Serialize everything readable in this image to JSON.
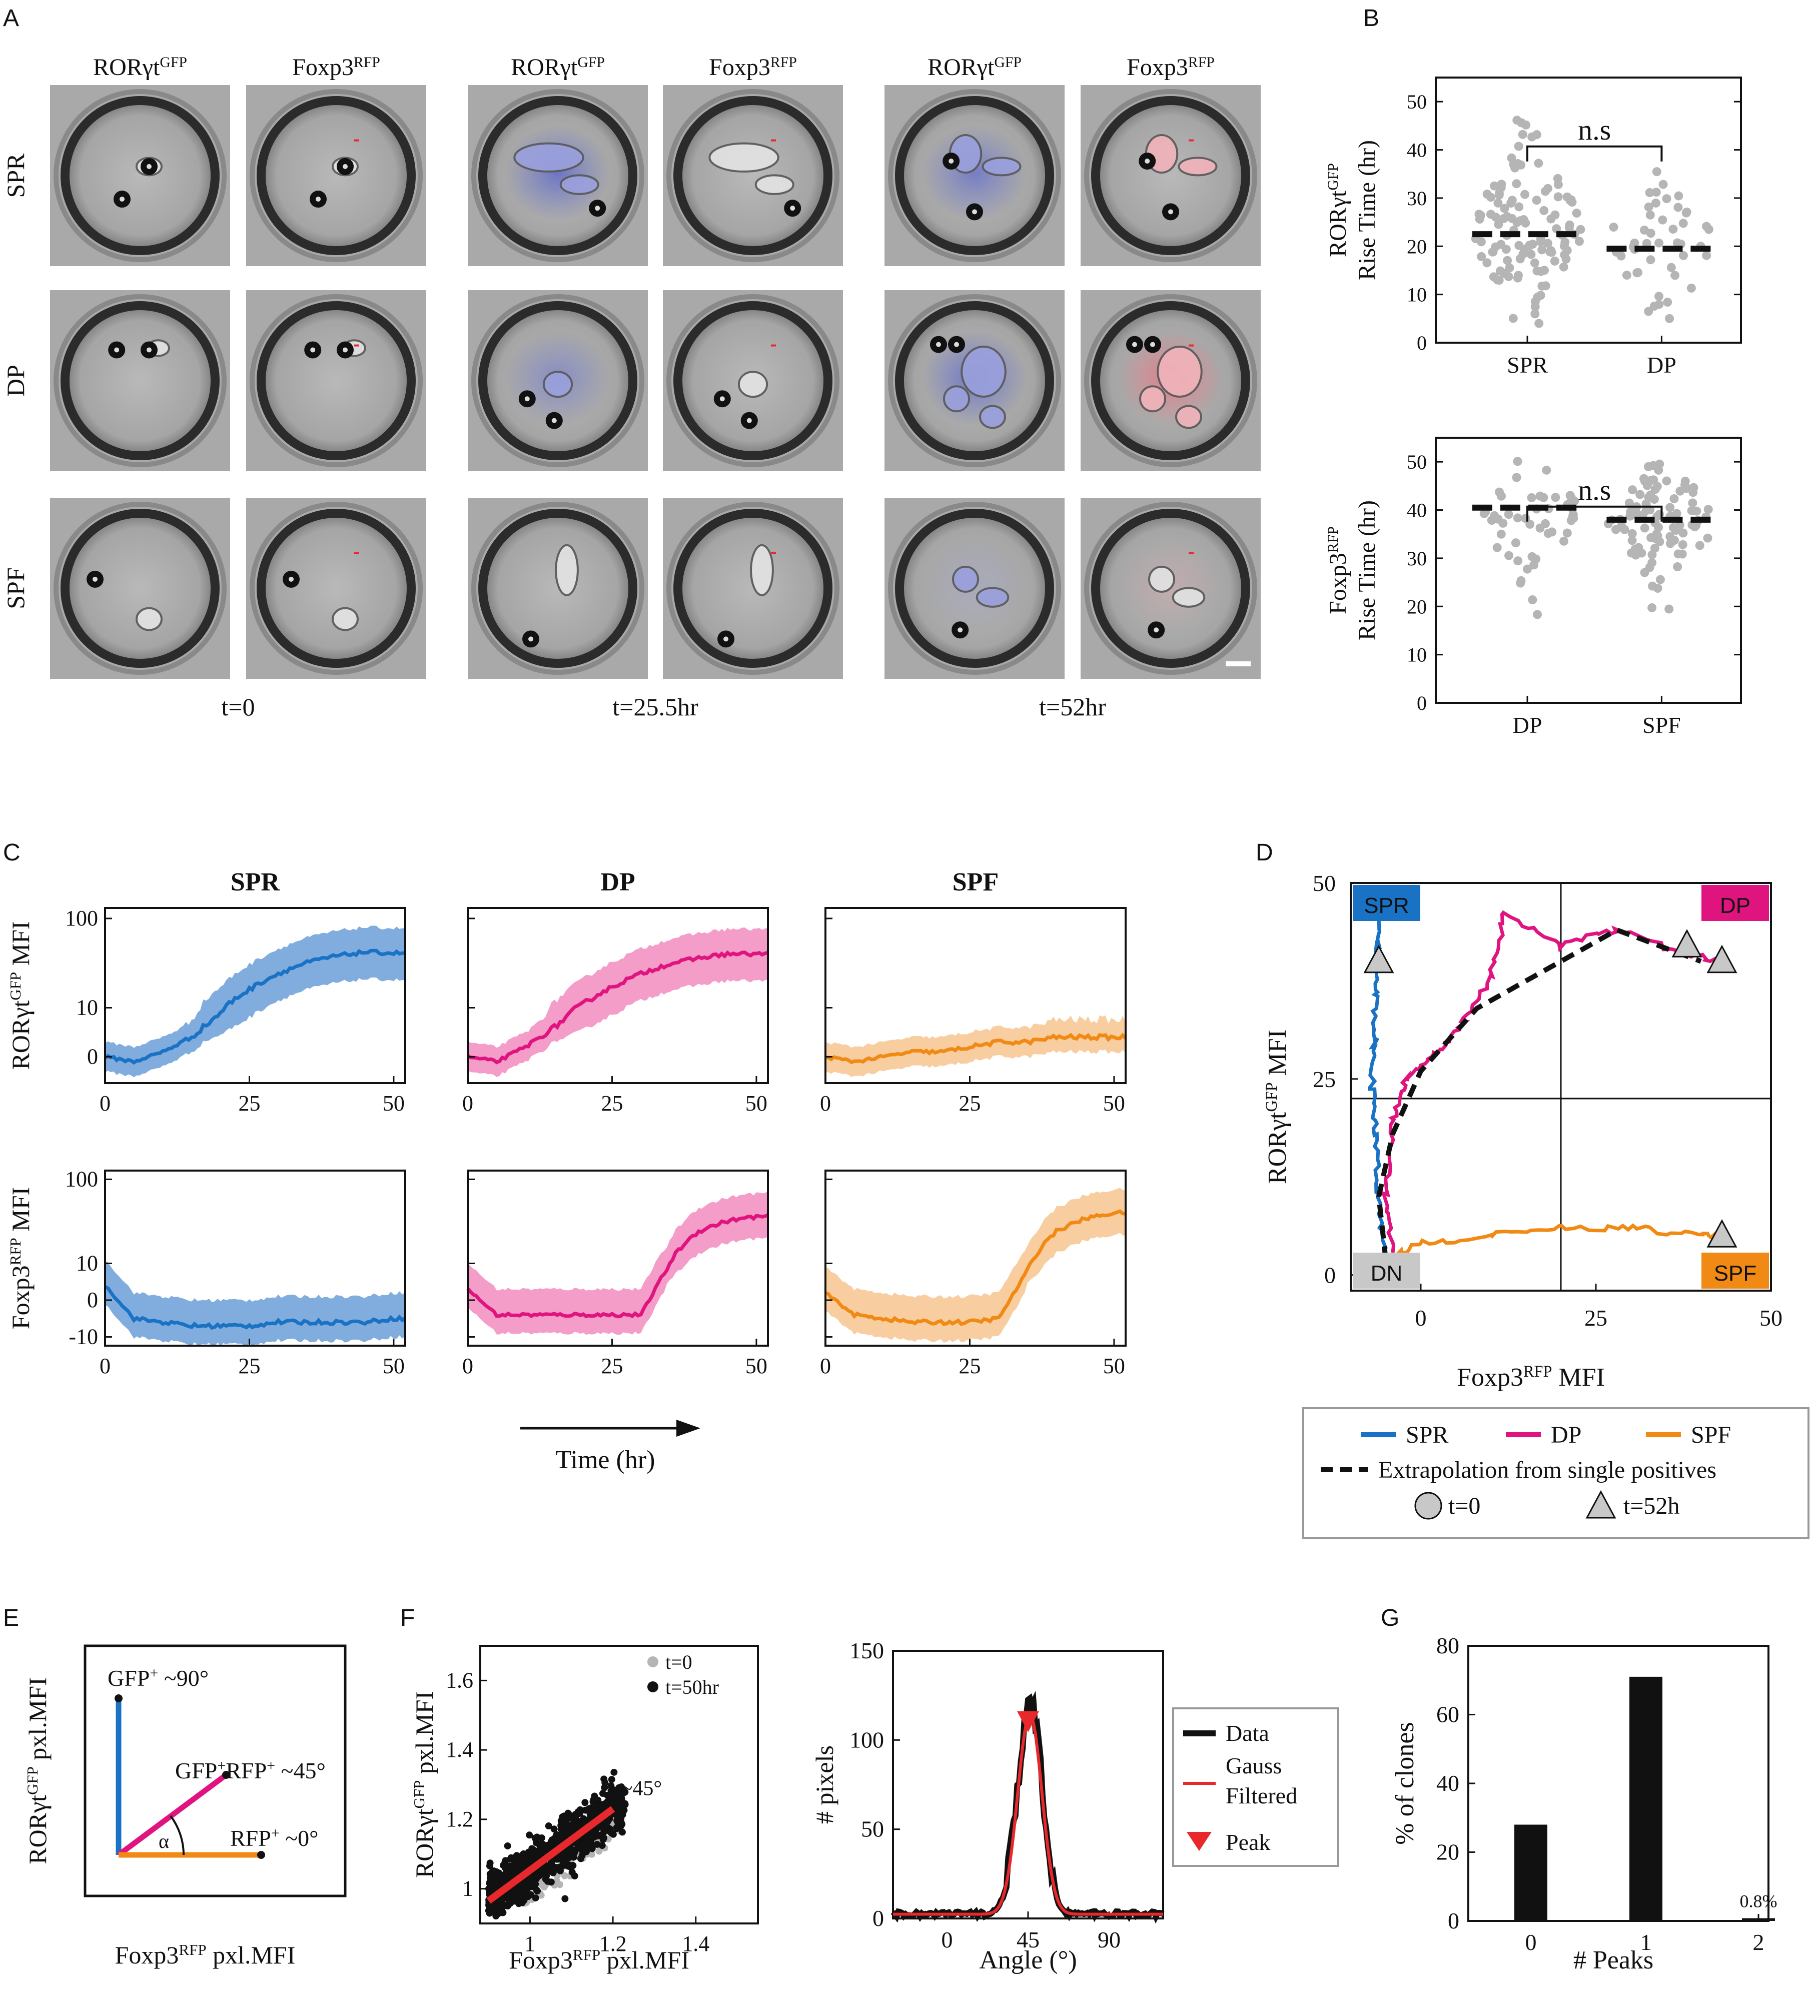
{
  "panels": {
    "A": "A",
    "B": "B",
    "C": "C",
    "D": "D",
    "E": "E",
    "F": "F",
    "G": "G"
  },
  "colors": {
    "spr": "#1a72c4",
    "dp": "#e0147f",
    "spf": "#f08a14",
    "sprBand": "#6b9ed8",
    "dpBand": "#f28cc0",
    "spfBand": "#f7c590",
    "gray": "#b5b5b5",
    "red": "#e8282b"
  },
  "panelA": {
    "header": {
      "ror": "RORγt",
      "gfp": "GFP",
      "foxp3": "Foxp3",
      "rfp": "RFP"
    },
    "rows": [
      "SPR",
      "DP",
      "SPF"
    ],
    "times": [
      "t=0",
      "t=25.5hr",
      "t=52hr"
    ]
  },
  "panelB": {
    "top": {
      "ylabel1": "RORγt",
      "ylabel_sup": "GFP",
      "ylabel2": "Rise Time (hr)",
      "yticks": [
        "0",
        "10",
        "20",
        "30",
        "40",
        "50"
      ],
      "xlabels": [
        "SPR",
        "DP"
      ],
      "sig": "n.s",
      "medians": [
        22.5,
        19.5
      ]
    },
    "bottom": {
      "ylabel1": "Foxp3",
      "ylabel_sup": "RFP",
      "ylabel2": "Rise Time (hr)",
      "yticks": [
        "0",
        "10",
        "20",
        "30",
        "40",
        "50"
      ],
      "xlabels": [
        "DP",
        "SPF"
      ],
      "sig": "n.s",
      "medians": [
        40.5,
        38
      ]
    }
  },
  "panelC": {
    "titles": [
      "SPR",
      "DP",
      "SPF"
    ],
    "ylabelTop": {
      "main": "RORγt",
      "sup": "GFP",
      "suffix": " MFI"
    },
    "ylabelBottom": {
      "main": "Foxp3",
      "sup": "RFP",
      "suffix": " MFI"
    },
    "yticksTop": [
      "0",
      "10",
      "100"
    ],
    "yticksBottom": [
      "-10",
      "0",
      "10",
      "100"
    ],
    "xticks": [
      "0",
      "25",
      "50"
    ],
    "xlabel": "Time (hr)"
  },
  "panelD": {
    "xlabel": {
      "main": "Foxp3",
      "sup": "RFP",
      "suffix": " MFI"
    },
    "ylabel": {
      "main": "RORγt",
      "sup": "GFP",
      "suffix": " MFI"
    },
    "xticks": [
      "0",
      "25",
      "50"
    ],
    "yticks": [
      "0",
      "25",
      "50"
    ],
    "quadrants": {
      "tl": "SPR",
      "tr": "DP",
      "bl": "DN",
      "br": "SPF"
    },
    "legend": {
      "spr": "SPR",
      "dp": "DP",
      "spf": "SPF",
      "extrap": "Extrapolation from single positives",
      "t0": "t=0",
      "t52": "t=52h"
    }
  },
  "panelE": {
    "gfp": "GFP",
    "gfpRest": " ~90°",
    "dp1": "GFP",
    "dp2": "RFP",
    "dpRest": " ~45°",
    "rfp": "RFP",
    "rfpRest": " ~0°",
    "alpha": "α",
    "plus": "+",
    "ylabel": {
      "main": "RORγt",
      "sup": "GFP",
      "suffix": " pxl.MFI"
    },
    "xlabel": {
      "main": "Foxp3",
      "sup": "RFP",
      "suffix": " pxl.MFI"
    }
  },
  "panelF": {
    "scatter": {
      "legend": [
        "t=0",
        "t=50hr"
      ],
      "angle": "~45°",
      "xticks": [
        "1",
        "1.2",
        "1.4"
      ],
      "yticks": [
        "1",
        "1.2",
        "1.4",
        "1.6"
      ],
      "xlabel": {
        "main": "Foxp3",
        "sup": "RFP",
        "suffix": " pxl.MFI"
      },
      "ylabel": {
        "main": "RORγt",
        "sup": "GFP",
        "suffix": " pxl.MFI"
      }
    },
    "hist": {
      "ylabel": "# pixels",
      "xlabel": "Angle (°)",
      "xticks": [
        "0",
        "45",
        "90"
      ],
      "yticks": [
        "0",
        "50",
        "100",
        "150"
      ],
      "legend": {
        "data": "Data",
        "gauss1": "Gauss",
        "gauss2": "Filtered",
        "peak": "Peak"
      },
      "peak_angle": 45,
      "peak_value": 110
    }
  },
  "panelG": {
    "ylabel": "% of clones",
    "xlabel": "# Peaks",
    "xticks": [
      "0",
      "1",
      "2"
    ],
    "yticks": [
      "0",
      "20",
      "40",
      "60",
      "80"
    ],
    "chart_data": {
      "type": "bar",
      "categories": [
        "0",
        "1",
        "2"
      ],
      "values": [
        28,
        71,
        0.8
      ],
      "ylim": [
        0,
        80
      ],
      "annotation": "0.8%",
      "xlabel": "# Peaks",
      "ylabel": "% of clones"
    }
  },
  "chart_data": [
    {
      "type": "scatter",
      "title": "RORγt GFP Rise Time (hr)",
      "categories": [
        "SPR",
        "DP"
      ],
      "medians": [
        22.5,
        19.5
      ],
      "ylim": [
        0,
        55
      ],
      "annotation": "n.s"
    },
    {
      "type": "scatter",
      "title": "Foxp3 RFP Rise Time (hr)",
      "categories": [
        "DP",
        "SPF"
      ],
      "medians": [
        40.5,
        38
      ],
      "ylim": [
        0,
        55
      ],
      "annotation": "n.s"
    },
    {
      "type": "line",
      "title": "Panel C RORγt GFP MFI",
      "x": [
        0,
        5,
        10,
        15,
        20,
        25,
        30,
        35,
        40,
        45,
        50
      ],
      "series": [
        {
          "name": "SPR",
          "values": [
            0,
            -1,
            1,
            4,
            9,
            16,
            24,
            32,
            38,
            42,
            41
          ]
        },
        {
          "name": "DP",
          "values": [
            0,
            -1,
            2,
            6,
            11,
            17,
            24,
            31,
            36,
            40,
            40
          ]
        },
        {
          "name": "SPF",
          "values": [
            0,
            -1,
            0,
            1,
            1,
            2,
            3,
            3,
            4,
            4,
            4
          ]
        }
      ]
    },
    {
      "type": "line",
      "title": "Panel C Foxp3 RFP MFI",
      "x": [
        0,
        5,
        10,
        15,
        20,
        25,
        30,
        35,
        40,
        45,
        50
      ],
      "series": [
        {
          "name": "SPR",
          "values": [
            4,
            -5,
            -6,
            -7,
            -7,
            -7,
            -6,
            -6,
            -6,
            -6,
            -5
          ]
        },
        {
          "name": "DP",
          "values": [
            3,
            -4,
            -4,
            -4,
            -4,
            -4,
            -4,
            10,
            24,
            32,
            36
          ]
        },
        {
          "name": "SPF",
          "values": [
            2,
            -4,
            -5,
            -6,
            -6,
            -6,
            -5,
            8,
            24,
            34,
            40
          ]
        }
      ]
    },
    {
      "type": "line",
      "title": "Panel D trajectories (x: Foxp3 RFP MFI, y: RORγt GFP MFI)",
      "series": [
        {
          "name": "SPR",
          "x": [
            -5,
            -6,
            -6.5,
            -7,
            -6.5,
            -6.5,
            -6,
            -6
          ],
          "y": [
            2,
            10,
            18,
            24,
            30,
            36,
            42,
            46
          ]
        },
        {
          "name": "DP",
          "x": [
            -4,
            -5,
            -4,
            -2,
            2,
            6,
            10,
            12,
            20,
            28,
            38,
            43
          ],
          "y": [
            2,
            10,
            20,
            25,
            28,
            32,
            38,
            46,
            42,
            44,
            41,
            40
          ]
        },
        {
          "name": "SPF",
          "x": [
            -5,
            0,
            10,
            20,
            30,
            40,
            43
          ],
          "y": [
            2,
            4,
            5,
            6,
            6,
            5,
            5
          ]
        },
        {
          "name": "Extrapolation from single positives",
          "x": [
            -5,
            -6,
            -4,
            0,
            8,
            16,
            22,
            28,
            34,
            40
          ],
          "y": [
            2,
            10,
            18,
            26,
            34,
            38,
            41,
            44,
            42,
            40
          ]
        }
      ]
    },
    {
      "type": "line",
      "title": "Angle histogram",
      "x": [
        -30,
        0,
        30,
        40,
        45,
        50,
        60,
        90,
        120
      ],
      "series": [
        {
          "name": "Data",
          "values": [
            2,
            3,
            8,
            60,
            123,
            60,
            8,
            2,
            1
          ]
        },
        {
          "name": "Gauss Filtered",
          "values": [
            1,
            2,
            7,
            55,
            112,
            55,
            7,
            2,
            1
          ]
        }
      ]
    }
  ]
}
